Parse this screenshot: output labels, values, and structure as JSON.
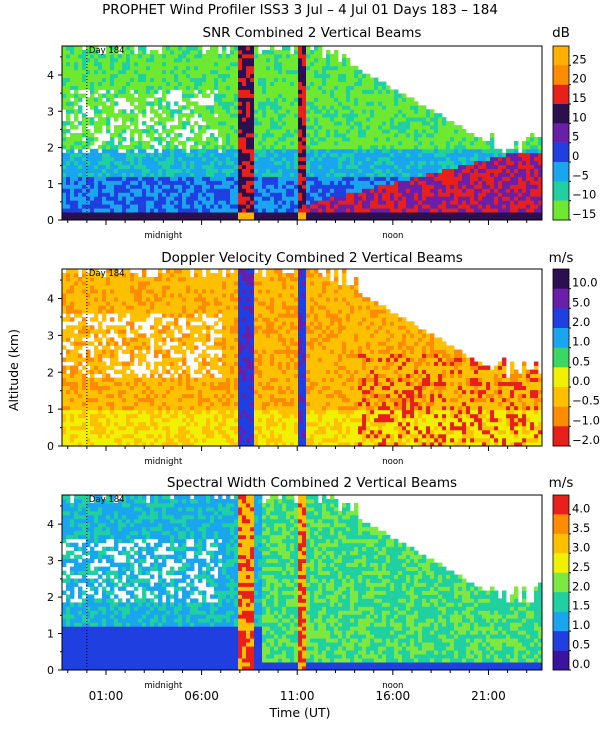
{
  "header": {
    "title": "PROPHET Wind Profiler ISS3    3 Jul –  4 Jul 01 Days 183 – 184"
  },
  "chart_data": [
    {
      "type": "heatmap",
      "title": "SNR Combined 2 Vertical Beams",
      "unit": "dB",
      "colorbar_ticks": [
        "25",
        "20",
        "15",
        "10",
        "5",
        "0",
        "−5",
        "−10",
        "−15"
      ],
      "colors": [
        "#ffb000",
        "#ff8c00",
        "#e8201c",
        "#2c0f4e",
        "#6a1fa8",
        "#1f3fe0",
        "#1aa6ee",
        "#20d0a0",
        "#6ee830"
      ],
      "day_marker": "Day 184",
      "y_ticks": [
        "0",
        "1",
        "2",
        "3",
        "4"
      ],
      "ylim_km": [
        0,
        4.8
      ],
      "x_annotations": [
        "midnight",
        "noon"
      ]
    },
    {
      "type": "heatmap",
      "title": "Doppler Velocity Combined 2 Vertical Beams",
      "unit": "m/s",
      "colorbar_ticks": [
        "10.0",
        "5.0",
        "2.0",
        "1.0",
        "0.5",
        "0.0",
        "−0.5",
        "−1.0",
        "−2.0"
      ],
      "colors": [
        "#2c0f4e",
        "#6a1fa8",
        "#1f3fe0",
        "#1aa6ee",
        "#3ad860",
        "#f0f000",
        "#ffc000",
        "#ff8c00",
        "#e8201c"
      ],
      "day_marker": "Day 184",
      "y_ticks": [
        "0",
        "1",
        "2",
        "3",
        "4"
      ],
      "ylim_km": [
        0,
        4.8
      ],
      "x_annotations": [
        "midnight",
        "noon"
      ]
    },
    {
      "type": "heatmap",
      "title": "Spectral Width Combined 2 Vertical Beams",
      "unit": "m/s",
      "colorbar_ticks": [
        "4.0",
        "3.5",
        "3.0",
        "2.5",
        "2.0",
        "1.5",
        "1.0",
        "0.5",
        "0.0"
      ],
      "colors": [
        "#e8201c",
        "#ff8c00",
        "#ffc000",
        "#f0f000",
        "#7ee840",
        "#20d0a0",
        "#1aa6ee",
        "#1f3fe0",
        "#3a14a0"
      ],
      "day_marker": "Day 184",
      "y_ticks": [
        "0",
        "1",
        "2",
        "3",
        "4"
      ],
      "ylim_km": [
        0,
        4.8
      ],
      "x_annotations": [
        "midnight",
        "noon"
      ]
    }
  ],
  "axes": {
    "ylabel": "Altitude (km)",
    "xlabel": "Time (UT)",
    "x_ticks": [
      "01:00",
      "06:00",
      "11:00",
      "16:00",
      "21:00"
    ],
    "x_tick_hours": [
      1,
      6,
      11,
      16,
      21
    ],
    "x_range_hours": [
      -1.3,
      23.8
    ],
    "midnight_hour": 4,
    "noon_hour": 16,
    "day_boundary_hour": 0
  }
}
